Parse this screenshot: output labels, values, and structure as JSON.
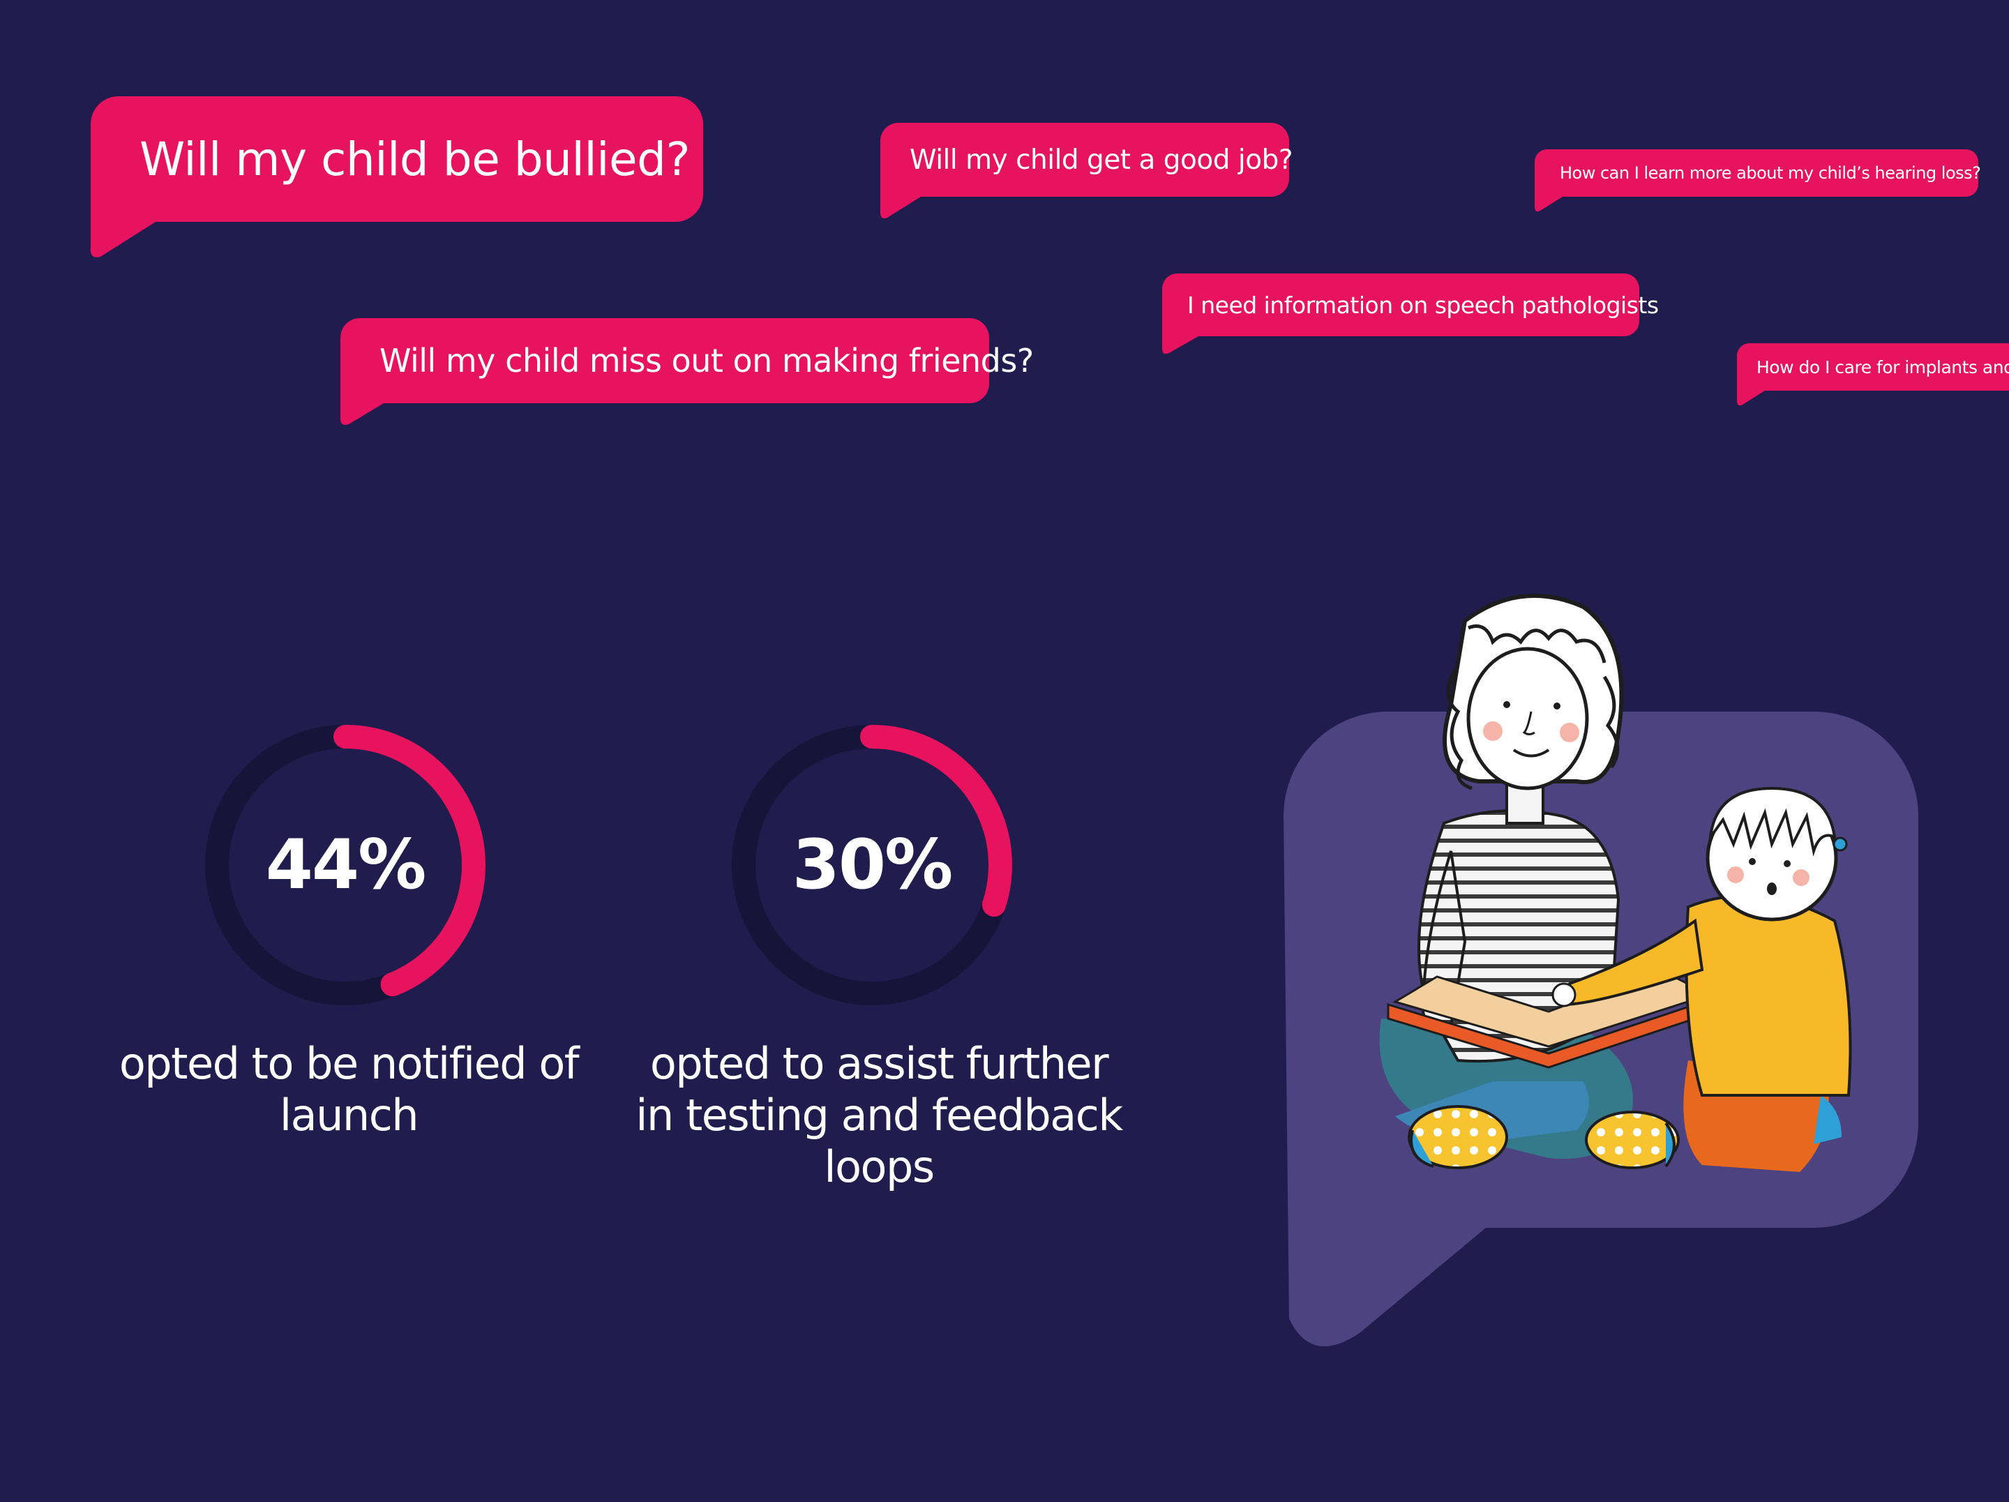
{
  "colors": {
    "background": "#211c4e",
    "bubble": "#e8135f",
    "ring_accent": "#e8135f",
    "ring_track": "#17143a",
    "panel": "#4c4380",
    "text": "#ffffff"
  },
  "bubbles": [
    {
      "text": "Will my child be bullied?"
    },
    {
      "text": "Will my child get a good job?"
    },
    {
      "text": "How can I learn more about my child’s hearing loss?"
    },
    {
      "text": "I need information on speech pathologists"
    },
    {
      "text": "Will my child miss out on making friends?"
    },
    {
      "text": "How do I care for implants and a"
    }
  ],
  "stats": [
    {
      "value": "44%",
      "percent": 44,
      "caption_lines": [
        "opted to be notified of",
        "launch"
      ]
    },
    {
      "value": "30%",
      "percent": 30,
      "caption_lines": [
        "opted to assist further",
        "in testing and feedback",
        "loops"
      ]
    }
  ],
  "illustration": {
    "icon": "parent-reading-to-child-illustration"
  }
}
